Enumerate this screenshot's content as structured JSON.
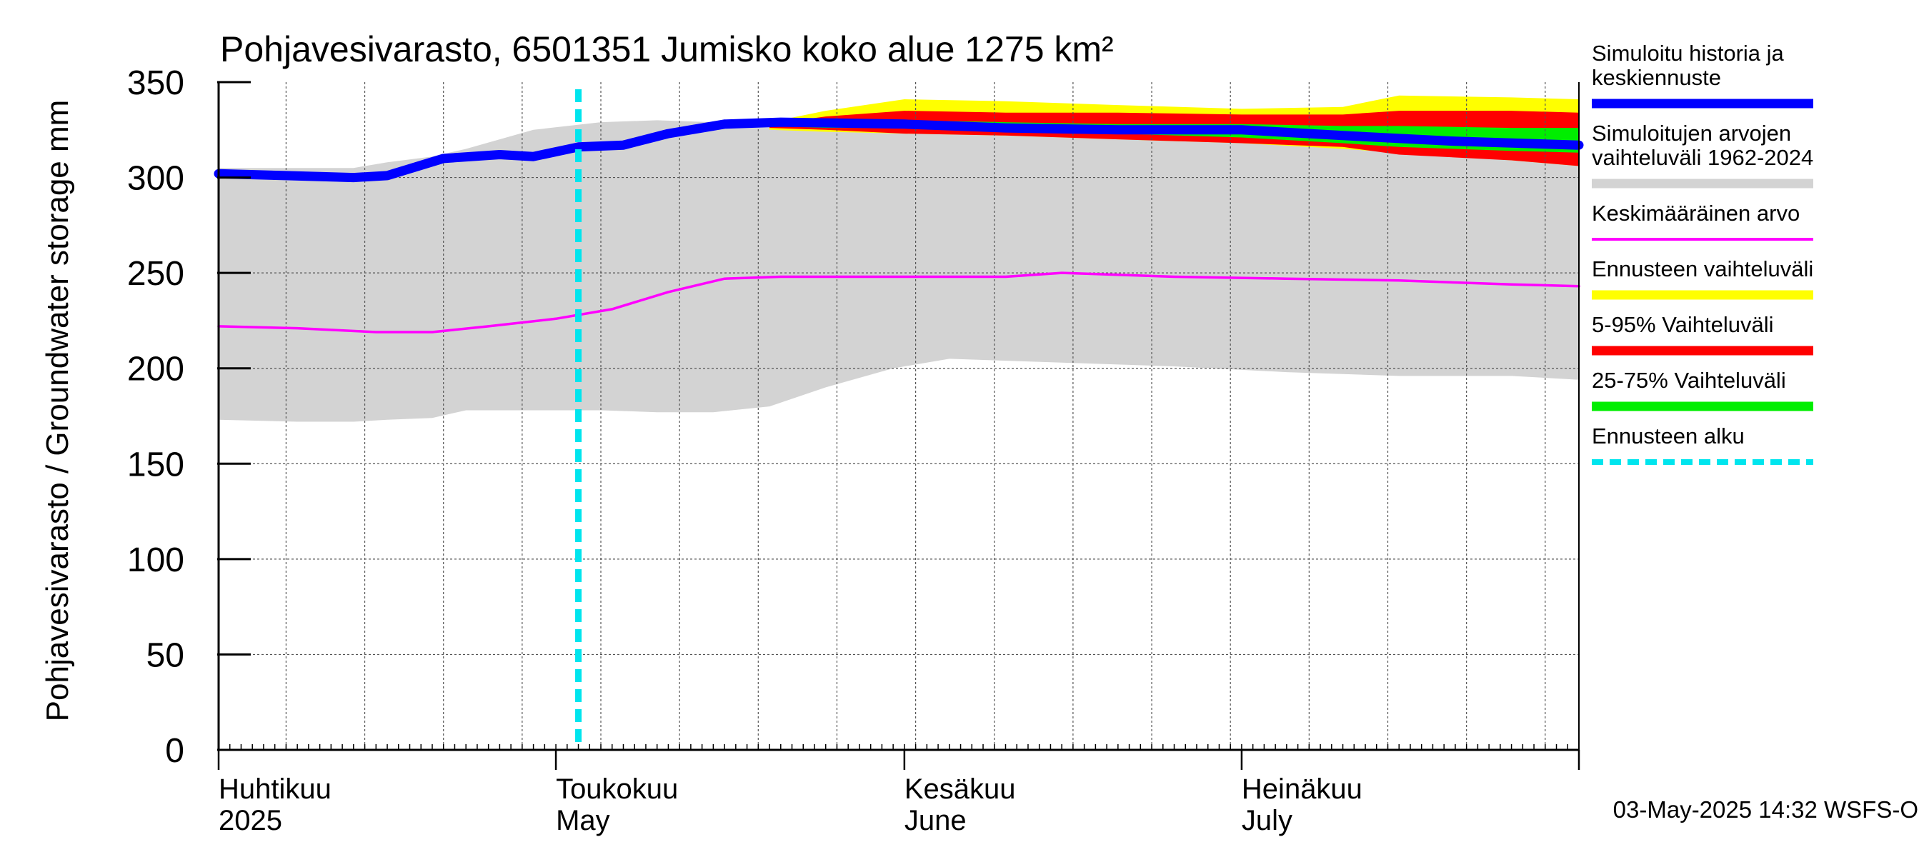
{
  "chart_data": {
    "type": "area",
    "title": "Pohjavesivarasto, 6501351 Jumisko koko alue 1275 km²",
    "ylabel": "Pohjavesivarasto / Groundwater storage   mm",
    "ylim": [
      0,
      350
    ],
    "yticks": [
      "0",
      "50",
      "100",
      "150",
      "200",
      "250",
      "300",
      "350"
    ],
    "xlim": [
      "2025-04-01",
      "2025-07-31"
    ],
    "grid": true,
    "legend_position": "right",
    "x_month_labels": [
      {
        "date": "2025-04-01",
        "fi": "Huhtikuu",
        "en": "2025"
      },
      {
        "date": "2025-05-01",
        "fi": "Toukokuu",
        "en": "May"
      },
      {
        "date": "2025-06-01",
        "fi": "Kesäkuu",
        "en": "June"
      },
      {
        "date": "2025-07-01",
        "fi": "Heinäkuu",
        "en": "July"
      }
    ],
    "forecast_start": "2025-05-03",
    "timestamp": "03-May-2025 14:32 WSFS-O",
    "series": [
      {
        "name": "Simuloitujen arvojen vaihteluväli 1962-2024",
        "kind": "band",
        "color": "#d3d3d3",
        "x": [
          "2025-04-01",
          "2025-04-08",
          "2025-04-13",
          "2025-04-16",
          "2025-04-20",
          "2025-04-23",
          "2025-04-29",
          "2025-05-05",
          "2025-05-10",
          "2025-05-15",
          "2025-05-20",
          "2025-05-25",
          "2025-05-31",
          "2025-06-05",
          "2025-06-15",
          "2025-06-25",
          "2025-07-05",
          "2025-07-15",
          "2025-07-25",
          "2025-07-31"
        ],
        "lower": [
          173,
          172,
          172,
          173,
          174,
          178,
          178,
          178,
          177,
          177,
          180,
          190,
          200,
          205,
          203,
          201,
          198,
          196,
          196,
          194
        ],
        "upper": [
          305,
          305,
          305,
          308,
          311,
          315,
          325,
          329,
          330,
          329,
          330,
          330,
          330,
          330,
          330,
          330,
          330,
          330,
          330,
          330
        ]
      },
      {
        "name": "Ennusteen vaihteluväli",
        "kind": "band",
        "color": "#ffff00",
        "x": [
          "2025-05-20",
          "2025-05-25",
          "2025-06-01",
          "2025-06-10",
          "2025-06-20",
          "2025-07-01",
          "2025-07-10",
          "2025-07-15",
          "2025-07-25",
          "2025-07-31"
        ],
        "lower": [
          325,
          324,
          323,
          322,
          320,
          318,
          315,
          313,
          309,
          306
        ],
        "upper": [
          329,
          335,
          341,
          340,
          338,
          336,
          337,
          343,
          342,
          341
        ]
      },
      {
        "name": "5-95% Vaihteluväli",
        "kind": "band",
        "color": "#ff0000",
        "x": [
          "2025-05-20",
          "2025-05-25",
          "2025-06-01",
          "2025-06-10",
          "2025-06-20",
          "2025-07-01",
          "2025-07-10",
          "2025-07-15",
          "2025-07-25",
          "2025-07-31"
        ],
        "lower": [
          326,
          325,
          323,
          322,
          320,
          318,
          316,
          312,
          309,
          306
        ],
        "upper": [
          328,
          332,
          335,
          334,
          334,
          333,
          333,
          335,
          335,
          334
        ]
      },
      {
        "name": "25-75% Vaihteluväli",
        "kind": "band",
        "color": "#00ee00",
        "x": [
          "2025-05-20",
          "2025-05-25",
          "2025-06-01",
          "2025-06-10",
          "2025-06-20",
          "2025-07-01",
          "2025-07-10",
          "2025-07-15",
          "2025-07-25",
          "2025-07-31"
        ],
        "lower": [
          327,
          326,
          326,
          325,
          323,
          321,
          318,
          316,
          314,
          313
        ],
        "upper": [
          328,
          330,
          330,
          329,
          328,
          328,
          327,
          327,
          326,
          326
        ]
      },
      {
        "name": "Keskimääräinen arvo",
        "kind": "line",
        "color": "#ff00ff",
        "x": [
          "2025-04-01",
          "2025-04-08",
          "2025-04-15",
          "2025-04-20",
          "2025-04-25",
          "2025-05-01",
          "2025-05-06",
          "2025-05-11",
          "2025-05-16",
          "2025-05-21",
          "2025-06-01",
          "2025-06-10",
          "2025-06-15",
          "2025-06-25",
          "2025-07-05",
          "2025-07-15",
          "2025-07-25",
          "2025-07-31"
        ],
        "values": [
          222,
          221,
          219,
          219,
          222,
          226,
          231,
          240,
          247,
          248,
          248,
          248,
          250,
          248,
          247,
          246,
          244,
          243
        ]
      },
      {
        "name": "Simuloitu historia ja keskiennuste",
        "kind": "line",
        "color": "#0000ff",
        "x": [
          "2025-04-01",
          "2025-04-07",
          "2025-04-13",
          "2025-04-16",
          "2025-04-21",
          "2025-04-26",
          "2025-04-29",
          "2025-05-03",
          "2025-05-07",
          "2025-05-11",
          "2025-05-16",
          "2025-05-21",
          "2025-06-01",
          "2025-06-10",
          "2025-06-20",
          "2025-07-01",
          "2025-07-10",
          "2025-07-20",
          "2025-07-31"
        ],
        "values": [
          302,
          301,
          300,
          301,
          310,
          312,
          311,
          316,
          317,
          323,
          328,
          329,
          328,
          326,
          325,
          325,
          322,
          319,
          317
        ]
      }
    ],
    "legend": [
      {
        "label": "Simuloitu historia ja\nkeskiennuste",
        "color": "#0000ff",
        "style": "thick"
      },
      {
        "label": "Simuloitujen arvojen\nvaihteluväli 1962-2024",
        "color": "#d3d3d3",
        "style": "thick"
      },
      {
        "label": "Keskimääräinen arvo",
        "color": "#ff00ff",
        "style": "thin"
      },
      {
        "label": "Ennusteen vaihteluväli",
        "color": "#ffff00",
        "style": "thick"
      },
      {
        "label": "5-95% Vaihteluväli",
        "color": "#ff0000",
        "style": "thick"
      },
      {
        "label": "25-75% Vaihteluväli",
        "color": "#00ee00",
        "style": "thick"
      },
      {
        "label": "Ennusteen alku",
        "color": "#00e5ee",
        "style": "dashed"
      }
    ]
  }
}
